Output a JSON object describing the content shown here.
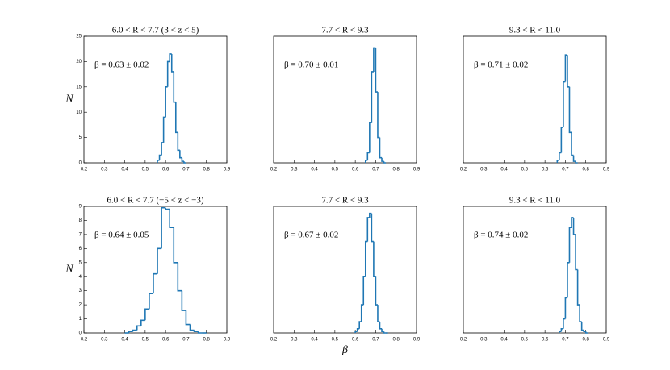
{
  "chart_data": [
    {
      "type": "histogram",
      "title": "6.0 < R < 7.7   (3 < z < 5)",
      "annotation": "β = 0.63 ± 0.02",
      "ylabel": "N",
      "color": "#1f77b4",
      "bins": [
        0.56,
        0.57,
        0.58,
        0.59,
        0.6,
        0.61,
        0.62,
        0.63,
        0.64,
        0.65,
        0.66,
        0.67,
        0.68,
        0.69,
        0.7
      ],
      "values": [
        0.5,
        1.5,
        4,
        9,
        15,
        20,
        21.5,
        18,
        12,
        6,
        2.5,
        1,
        0.3,
        0
      ],
      "xlim": [
        0.2,
        0.9
      ],
      "xticks": [
        0.2,
        0.3,
        0.4,
        0.5,
        0.6,
        0.7,
        0.8,
        0.9
      ],
      "ylim": [
        0,
        25
      ],
      "yticks": [
        0,
        5,
        10,
        15,
        20,
        25
      ]
    },
    {
      "type": "histogram",
      "title": "7.7 < R < 9.3",
      "annotation": "β = 0.70 ± 0.01",
      "color": "#1f77b4",
      "bins": [
        0.65,
        0.66,
        0.67,
        0.68,
        0.69,
        0.7,
        0.71,
        0.72,
        0.73,
        0.74,
        0.75
      ],
      "values": [
        0.5,
        2,
        8,
        18,
        22.7,
        14,
        5,
        1,
        0.3,
        0
      ],
      "xlim": [
        0.2,
        0.9
      ],
      "xticks": [
        0.2,
        0.3,
        0.4,
        0.5,
        0.6,
        0.7,
        0.8,
        0.9
      ],
      "ylim": [
        0,
        25
      ]
    },
    {
      "type": "histogram",
      "title": "9.3 < R < 11.0",
      "annotation": "β = 0.71 ± 0.02",
      "color": "#1f77b4",
      "bins": [
        0.66,
        0.67,
        0.68,
        0.69,
        0.7,
        0.71,
        0.72,
        0.73,
        0.74,
        0.75,
        0.76
      ],
      "values": [
        0.5,
        2,
        7,
        16,
        21.3,
        15,
        6,
        1.5,
        0.3,
        0
      ],
      "xlim": [
        0.2,
        0.9
      ],
      "xticks": [
        0.2,
        0.3,
        0.4,
        0.5,
        0.6,
        0.7,
        0.8,
        0.9
      ],
      "ylim": [
        0,
        25
      ]
    },
    {
      "type": "histogram",
      "title": "6.0 < R < 7.7   (−5 < z < −3)",
      "annotation": "β = 0.64 ± 0.05",
      "ylabel": "N",
      "color": "#1f77b4",
      "bins": [
        0.4,
        0.42,
        0.44,
        0.46,
        0.48,
        0.5,
        0.52,
        0.54,
        0.56,
        0.58,
        0.6,
        0.62,
        0.64,
        0.66,
        0.68,
        0.7,
        0.72,
        0.74,
        0.76,
        0.78,
        0.8
      ],
      "values": [
        0,
        0.1,
        0.2,
        0.5,
        0.9,
        1.7,
        2.8,
        4.2,
        6,
        8.9,
        8.8,
        7.5,
        5,
        3,
        1.6,
        0.6,
        0.2,
        0.1,
        0,
        0
      ],
      "xlim": [
        0.2,
        0.9
      ],
      "xticks": [
        0.2,
        0.3,
        0.4,
        0.5,
        0.6,
        0.7,
        0.8,
        0.9
      ],
      "ylim": [
        0,
        9
      ],
      "yticks": [
        0,
        1,
        2,
        3,
        4,
        5,
        6,
        7,
        8,
        9
      ]
    },
    {
      "type": "histogram",
      "title": "7.7 < R < 9.3",
      "annotation": "β = 0.67 ± 0.02",
      "xlabel": "β",
      "color": "#1f77b4",
      "bins": [
        0.6,
        0.61,
        0.62,
        0.63,
        0.64,
        0.65,
        0.66,
        0.67,
        0.68,
        0.69,
        0.7,
        0.71,
        0.72,
        0.73,
        0.74,
        0.75,
        0.76
      ],
      "values": [
        0.1,
        0.3,
        0.8,
        2,
        4,
        6.5,
        8.2,
        8.5,
        6.5,
        4,
        2,
        0.8,
        0.3,
        0.1,
        0,
        0
      ],
      "xlim": [
        0.2,
        0.9
      ],
      "xticks": [
        0.2,
        0.3,
        0.4,
        0.5,
        0.6,
        0.7,
        0.8,
        0.9
      ],
      "ylim": [
        0,
        9
      ]
    },
    {
      "type": "histogram",
      "title": "9.3 < R < 11.0",
      "annotation": "β = 0.74 ± 0.02",
      "color": "#1f77b4",
      "bins": [
        0.67,
        0.68,
        0.69,
        0.7,
        0.71,
        0.72,
        0.73,
        0.74,
        0.75,
        0.76,
        0.77,
        0.78,
        0.79,
        0.8,
        0.81
      ],
      "values": [
        0.1,
        0.3,
        1,
        2.5,
        5,
        7.5,
        8.2,
        7,
        4.5,
        2,
        0.8,
        0.2,
        0.1,
        0
      ],
      "xlim": [
        0.2,
        0.9
      ],
      "xticks": [
        0.2,
        0.3,
        0.4,
        0.5,
        0.6,
        0.7,
        0.8,
        0.9
      ],
      "ylim": [
        0,
        9
      ]
    }
  ]
}
